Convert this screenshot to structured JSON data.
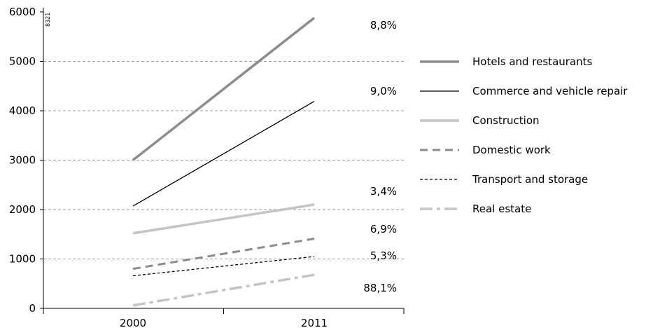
{
  "chart_data": {
    "type": "line",
    "code_label": "8321",
    "x": [
      "2000",
      "2011"
    ],
    "ylim": [
      0,
      6000
    ],
    "yticks": [
      0,
      1000,
      2000,
      3000,
      4000,
      5000,
      6000
    ],
    "grid": true,
    "legend_placement": "right",
    "series": [
      {
        "name": "Hotels and restaurants",
        "values": [
          3000,
          5880
        ],
        "end_label": "8,8%",
        "color": "#8c8c8c",
        "style": "solid-thick"
      },
      {
        "name": "Commerce and  vehicle repair",
        "values": [
          2070,
          4190
        ],
        "end_label": "9,0%",
        "color": "#000000",
        "style": "solid-thin"
      },
      {
        "name": "Construction",
        "values": [
          1520,
          2100
        ],
        "end_label": "3,4%",
        "color": "#c4c4c4",
        "style": "solid-thick"
      },
      {
        "name": "Domestic work",
        "values": [
          800,
          1410
        ],
        "end_label": "6,9%",
        "color": "#8c8c8c",
        "style": "dashed-thick"
      },
      {
        "name": "Transport and  storage",
        "values": [
          660,
          1050
        ],
        "end_label": "5,3%",
        "color": "#000000",
        "style": "dashed-thin"
      },
      {
        "name": "Real estate",
        "values": [
          60,
          680
        ],
        "end_label": "88,1%",
        "color": "#c4c4c4",
        "style": "dashdot-thick"
      }
    ]
  }
}
